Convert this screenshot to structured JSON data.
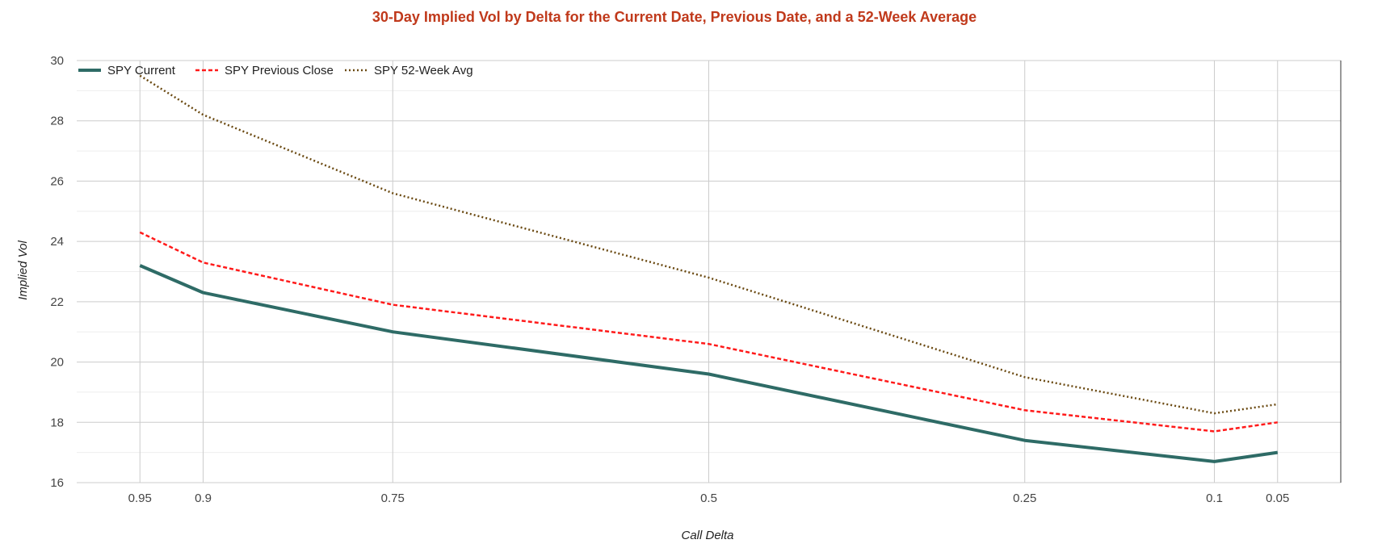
{
  "chart_data": {
    "type": "line",
    "title": "30-Day Implied Vol by Delta for the Current Date, Previous Date, and a 52-Week Average",
    "xlabel": "Call Delta",
    "ylabel": "Implied Vol",
    "x_reversed": true,
    "xlim": [
      1.0,
      0.0
    ],
    "ylim": [
      16,
      30
    ],
    "x_ticks": [
      0.95,
      0.9,
      0.75,
      0.5,
      0.25,
      0.1,
      0.05
    ],
    "y_ticks": [
      16,
      18,
      20,
      22,
      24,
      26,
      28,
      30
    ],
    "grid": true,
    "legend_position": "top-left",
    "x": [
      0.95,
      0.9,
      0.75,
      0.5,
      0.25,
      0.1,
      0.05
    ],
    "series": [
      {
        "name": "SPY Current",
        "values": [
          23.2,
          22.3,
          21.0,
          19.6,
          17.4,
          16.7,
          17.0
        ],
        "color": "#2e6b66",
        "style": "solid"
      },
      {
        "name": "SPY Previous Close",
        "values": [
          24.3,
          23.3,
          21.9,
          20.6,
          18.4,
          17.7,
          18.0
        ],
        "color": "#ff1a1a",
        "style": "dashed"
      },
      {
        "name": "SPY 52-Week Avg",
        "values": [
          29.5,
          28.2,
          25.6,
          22.8,
          19.5,
          18.3,
          18.6
        ],
        "color": "#6b4a12",
        "style": "dotted"
      }
    ]
  }
}
